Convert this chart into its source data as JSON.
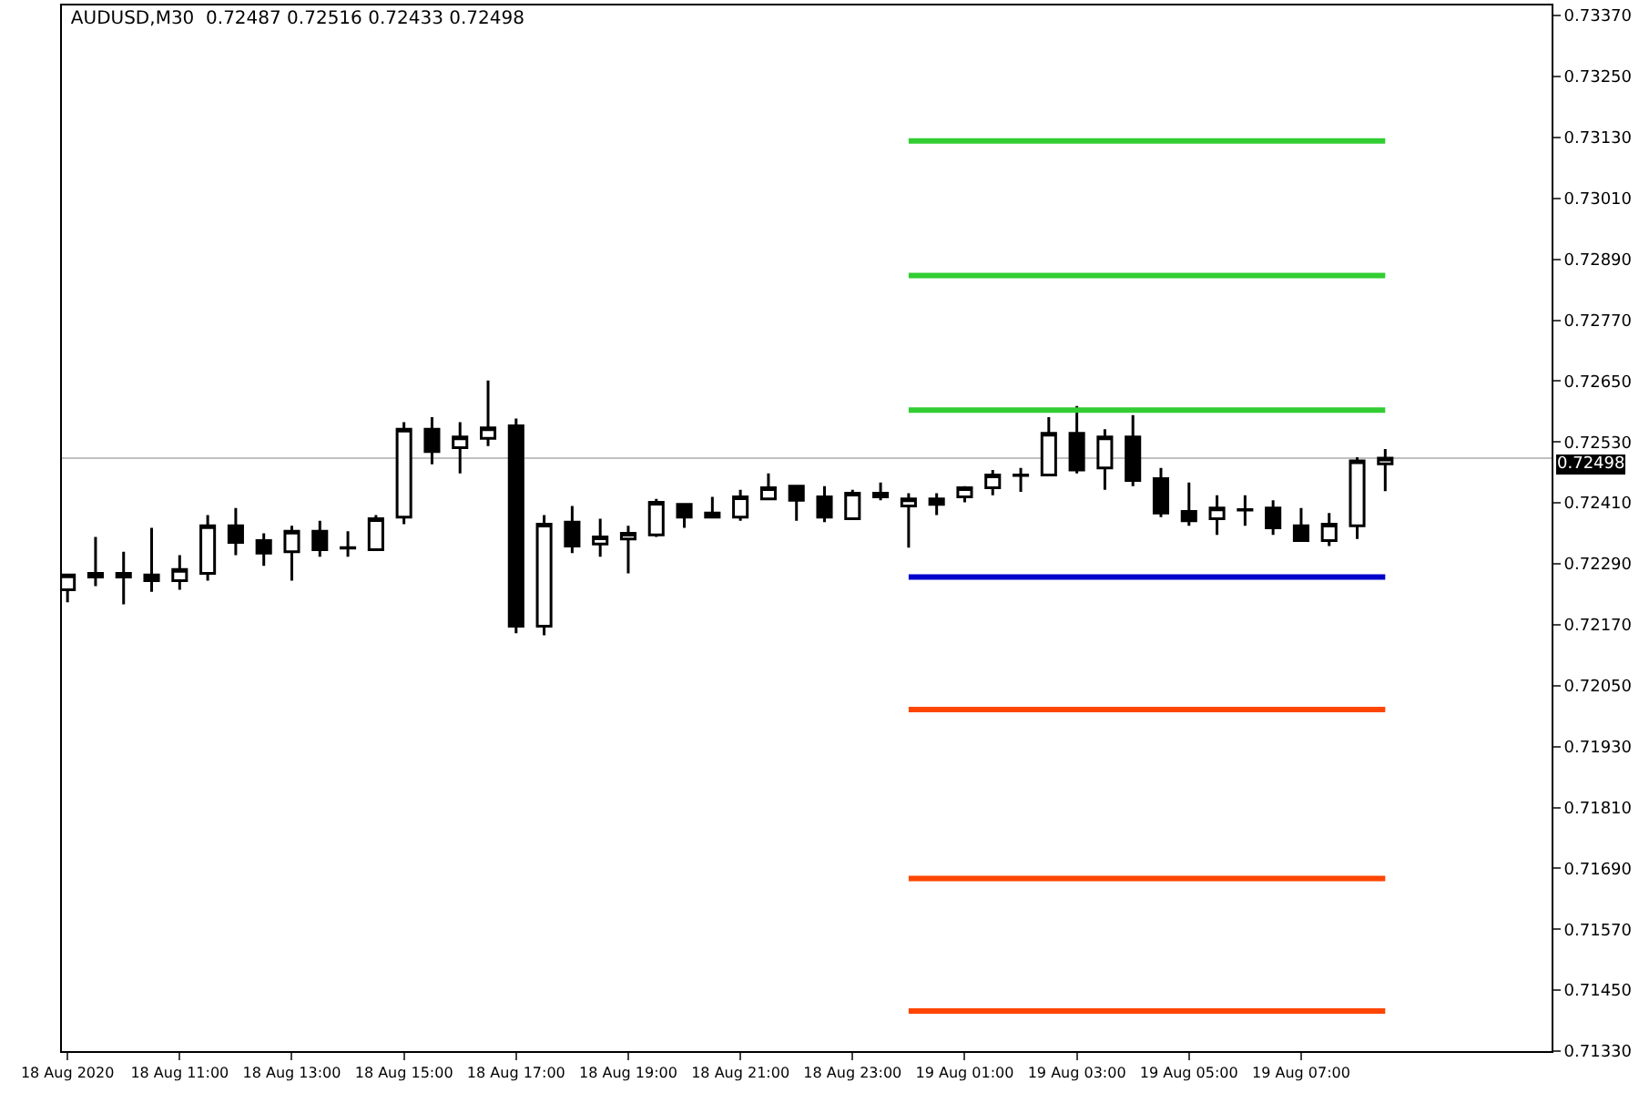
{
  "chart_data": {
    "type": "candlestick",
    "title": "AUDUSD,M30  0.72487 0.72516 0.72433 0.72498",
    "color": "#000000",
    "x": [
      "2020-08-18T09:00",
      "2020-08-18T09:30",
      "2020-08-18T10:00",
      "2020-08-18T10:30",
      "2020-08-18T11:00",
      "2020-08-18T11:30",
      "2020-08-18T12:00",
      "2020-08-18T12:30",
      "2020-08-18T13:00",
      "2020-08-18T13:30",
      "2020-08-18T14:00",
      "2020-08-18T14:30",
      "2020-08-18T15:00",
      "2020-08-18T15:30",
      "2020-08-18T16:00",
      "2020-08-18T16:30",
      "2020-08-18T17:00",
      "2020-08-18T17:30",
      "2020-08-18T18:00",
      "2020-08-18T18:30",
      "2020-08-18T19:00",
      "2020-08-18T19:30",
      "2020-08-18T20:00",
      "2020-08-18T20:30",
      "2020-08-18T21:00",
      "2020-08-18T21:30",
      "2020-08-18T22:00",
      "2020-08-18T22:30",
      "2020-08-18T23:00",
      "2020-08-18T23:30",
      "2020-08-19T00:00",
      "2020-08-19T00:30",
      "2020-08-19T01:00",
      "2020-08-19T01:30",
      "2020-08-19T02:00",
      "2020-08-19T02:30",
      "2020-08-19T03:00",
      "2020-08-19T03:30",
      "2020-08-19T04:00",
      "2020-08-19T04:30",
      "2020-08-19T05:00",
      "2020-08-19T05:30",
      "2020-08-19T06:00",
      "2020-08-19T06:30",
      "2020-08-19T07:00",
      "2020-08-19T07:30",
      "2020-08-19T08:00",
      "2020-08-19T08:30"
    ],
    "ohlc": [
      [
        0.72239,
        0.72268,
        0.72214,
        0.72268
      ],
      [
        0.72271,
        0.72343,
        0.72246,
        0.72264
      ],
      [
        0.72271,
        0.72314,
        0.7221,
        0.72264
      ],
      [
        0.72268,
        0.72361,
        0.72235,
        0.72257
      ],
      [
        0.72257,
        0.72307,
        0.72239,
        0.72279
      ],
      [
        0.72271,
        0.72386,
        0.72257,
        0.72365
      ],
      [
        0.72365,
        0.724,
        0.72307,
        0.72332
      ],
      [
        0.72336,
        0.7235,
        0.72286,
        0.72311
      ],
      [
        0.72314,
        0.72365,
        0.72257,
        0.72354
      ],
      [
        0.72354,
        0.72375,
        0.72304,
        0.72318
      ],
      [
        0.72322,
        0.72354,
        0.72304,
        0.72321
      ],
      [
        0.72318,
        0.72386,
        0.72318,
        0.72379
      ],
      [
        0.72382,
        0.72569,
        0.72368,
        0.72555
      ],
      [
        0.72555,
        0.72579,
        0.72486,
        0.72511
      ],
      [
        0.72519,
        0.72569,
        0.72468,
        0.7254
      ],
      [
        0.72537,
        0.72651,
        0.72522,
        0.72558
      ],
      [
        0.72562,
        0.72576,
        0.72153,
        0.72167
      ],
      [
        0.72167,
        0.72386,
        0.72149,
        0.72368
      ],
      [
        0.72372,
        0.72404,
        0.72311,
        0.72325
      ],
      [
        0.72329,
        0.72379,
        0.72304,
        0.72343
      ],
      [
        0.72339,
        0.72365,
        0.72271,
        0.7235
      ],
      [
        0.72347,
        0.72418,
        0.72343,
        0.72411
      ],
      [
        0.72407,
        0.72407,
        0.72361,
        0.72382
      ],
      [
        0.7239,
        0.72422,
        0.72382,
        0.72382
      ],
      [
        0.72382,
        0.72436,
        0.72375,
        0.72422
      ],
      [
        0.72418,
        0.72468,
        0.72415,
        0.7244
      ],
      [
        0.72443,
        0.72443,
        0.72375,
        0.72415
      ],
      [
        0.72422,
        0.72443,
        0.72372,
        0.72382
      ],
      [
        0.72379,
        0.72436,
        0.72379,
        0.72429
      ],
      [
        0.72429,
        0.7245,
        0.72415,
        0.72422
      ],
      [
        0.72404,
        0.72429,
        0.72322,
        0.72418
      ],
      [
        0.72418,
        0.72429,
        0.72386,
        0.72407
      ],
      [
        0.72422,
        0.72443,
        0.72411,
        0.7244
      ],
      [
        0.7244,
        0.72475,
        0.72425,
        0.72465
      ],
      [
        0.72465,
        0.72479,
        0.72432,
        0.72464
      ],
      [
        0.72465,
        0.72579,
        0.72465,
        0.72547
      ],
      [
        0.72547,
        0.72601,
        0.72468,
        0.72475
      ],
      [
        0.72479,
        0.72555,
        0.72436,
        0.7254
      ],
      [
        0.7254,
        0.72583,
        0.72443,
        0.72454
      ],
      [
        0.72458,
        0.72479,
        0.72382,
        0.7239
      ],
      [
        0.72393,
        0.7245,
        0.72365,
        0.72375
      ],
      [
        0.72379,
        0.72425,
        0.72347,
        0.724
      ],
      [
        0.72397,
        0.72425,
        0.72365,
        0.72396
      ],
      [
        0.724,
        0.72415,
        0.72347,
        0.72361
      ],
      [
        0.72365,
        0.724,
        0.72336,
        0.72336
      ],
      [
        0.72336,
        0.7239,
        0.72325,
        0.72368
      ],
      [
        0.72365,
        0.725,
        0.72339,
        0.72493
      ],
      [
        0.72487,
        0.72516,
        0.72433,
        0.72498
      ]
    ],
    "series": [
      {
        "type": "line",
        "color": "#32cd32",
        "x": [
          "2020-08-19T00:00",
          "2020-08-19T08:30"
        ],
        "values": [
          0.73123,
          0.73123
        ]
      },
      {
        "type": "line",
        "color": "#32cd32",
        "x": [
          "2020-08-19T00:00",
          "2020-08-19T08:30"
        ],
        "values": [
          0.72858,
          0.72858
        ]
      },
      {
        "type": "line",
        "color": "#32cd32",
        "x": [
          "2020-08-19T00:00",
          "2020-08-19T08:30"
        ],
        "values": [
          0.72593,
          0.72593
        ]
      },
      {
        "type": "line",
        "color": "#0000cd",
        "x": [
          "2020-08-19T00:00",
          "2020-08-19T08:30"
        ],
        "values": [
          0.72264,
          0.72264
        ]
      },
      {
        "type": "line",
        "color": "#ff4500",
        "x": [
          "2020-08-19T00:00",
          "2020-08-19T08:30"
        ],
        "values": [
          0.72003,
          0.72003
        ]
      },
      {
        "type": "line",
        "color": "#ff4500",
        "x": [
          "2020-08-19T00:00",
          "2020-08-19T08:30"
        ],
        "values": [
          0.7167,
          0.7167
        ]
      },
      {
        "type": "line",
        "color": "#ff4500",
        "x": [
          "2020-08-19T00:00",
          "2020-08-19T08:30"
        ],
        "values": [
          0.71409,
          0.71409
        ]
      }
    ],
    "ref_lines": [
      {
        "axis": "y",
        "value": 0.72498,
        "label": "0.72498",
        "color": "#c0c0c0"
      }
    ],
    "xlim": [
      "2020-08-18T08:54",
      "2020-08-19T11:28"
    ],
    "xticks": [
      {
        "value": "2020-08-18T09:00",
        "label": "18 Aug 2020"
      },
      {
        "value": "2020-08-18T11:00",
        "label": "18 Aug 11:00"
      },
      {
        "value": "2020-08-18T13:00",
        "label": "18 Aug 13:00"
      },
      {
        "value": "2020-08-18T15:00",
        "label": "18 Aug 15:00"
      },
      {
        "value": "2020-08-18T17:00",
        "label": "18 Aug 17:00"
      },
      {
        "value": "2020-08-18T19:00",
        "label": "18 Aug 19:00"
      },
      {
        "value": "2020-08-18T21:00",
        "label": "18 Aug 21:00"
      },
      {
        "value": "2020-08-18T23:00",
        "label": "18 Aug 23:00"
      },
      {
        "value": "2020-08-19T01:00",
        "label": "19 Aug 01:00"
      },
      {
        "value": "2020-08-19T03:00",
        "label": "19 Aug 03:00"
      },
      {
        "value": "2020-08-19T05:00",
        "label": "19 Aug 05:00"
      },
      {
        "value": "2020-08-19T07:00",
        "label": "19 Aug 07:00"
      }
    ],
    "ylim": [
      0.7133,
      0.7339
    ],
    "yticks": [
      {
        "value": 0.7133,
        "label": "0.71330"
      },
      {
        "value": 0.7145,
        "label": "0.71450"
      },
      {
        "value": 0.7157,
        "label": "0.71570"
      },
      {
        "value": 0.7169,
        "label": "0.71690"
      },
      {
        "value": 0.7181,
        "label": "0.71810"
      },
      {
        "value": 0.7193,
        "label": "0.71930"
      },
      {
        "value": 0.7205,
        "label": "0.72050"
      },
      {
        "value": 0.7217,
        "label": "0.72170"
      },
      {
        "value": 0.7229,
        "label": "0.72290"
      },
      {
        "value": 0.7241,
        "label": "0.72410"
      },
      {
        "value": 0.7253,
        "label": "0.72530"
      },
      {
        "value": 0.7265,
        "label": "0.72650"
      },
      {
        "value": 0.7277,
        "label": "0.72770"
      },
      {
        "value": 0.7289,
        "label": "0.72890"
      },
      {
        "value": 0.7301,
        "label": "0.73010"
      },
      {
        "value": 0.7313,
        "label": "0.73130"
      },
      {
        "value": 0.7325,
        "label": "0.73250"
      },
      {
        "value": 0.7337,
        "label": "0.73370"
      }
    ],
    "grid": false
  }
}
